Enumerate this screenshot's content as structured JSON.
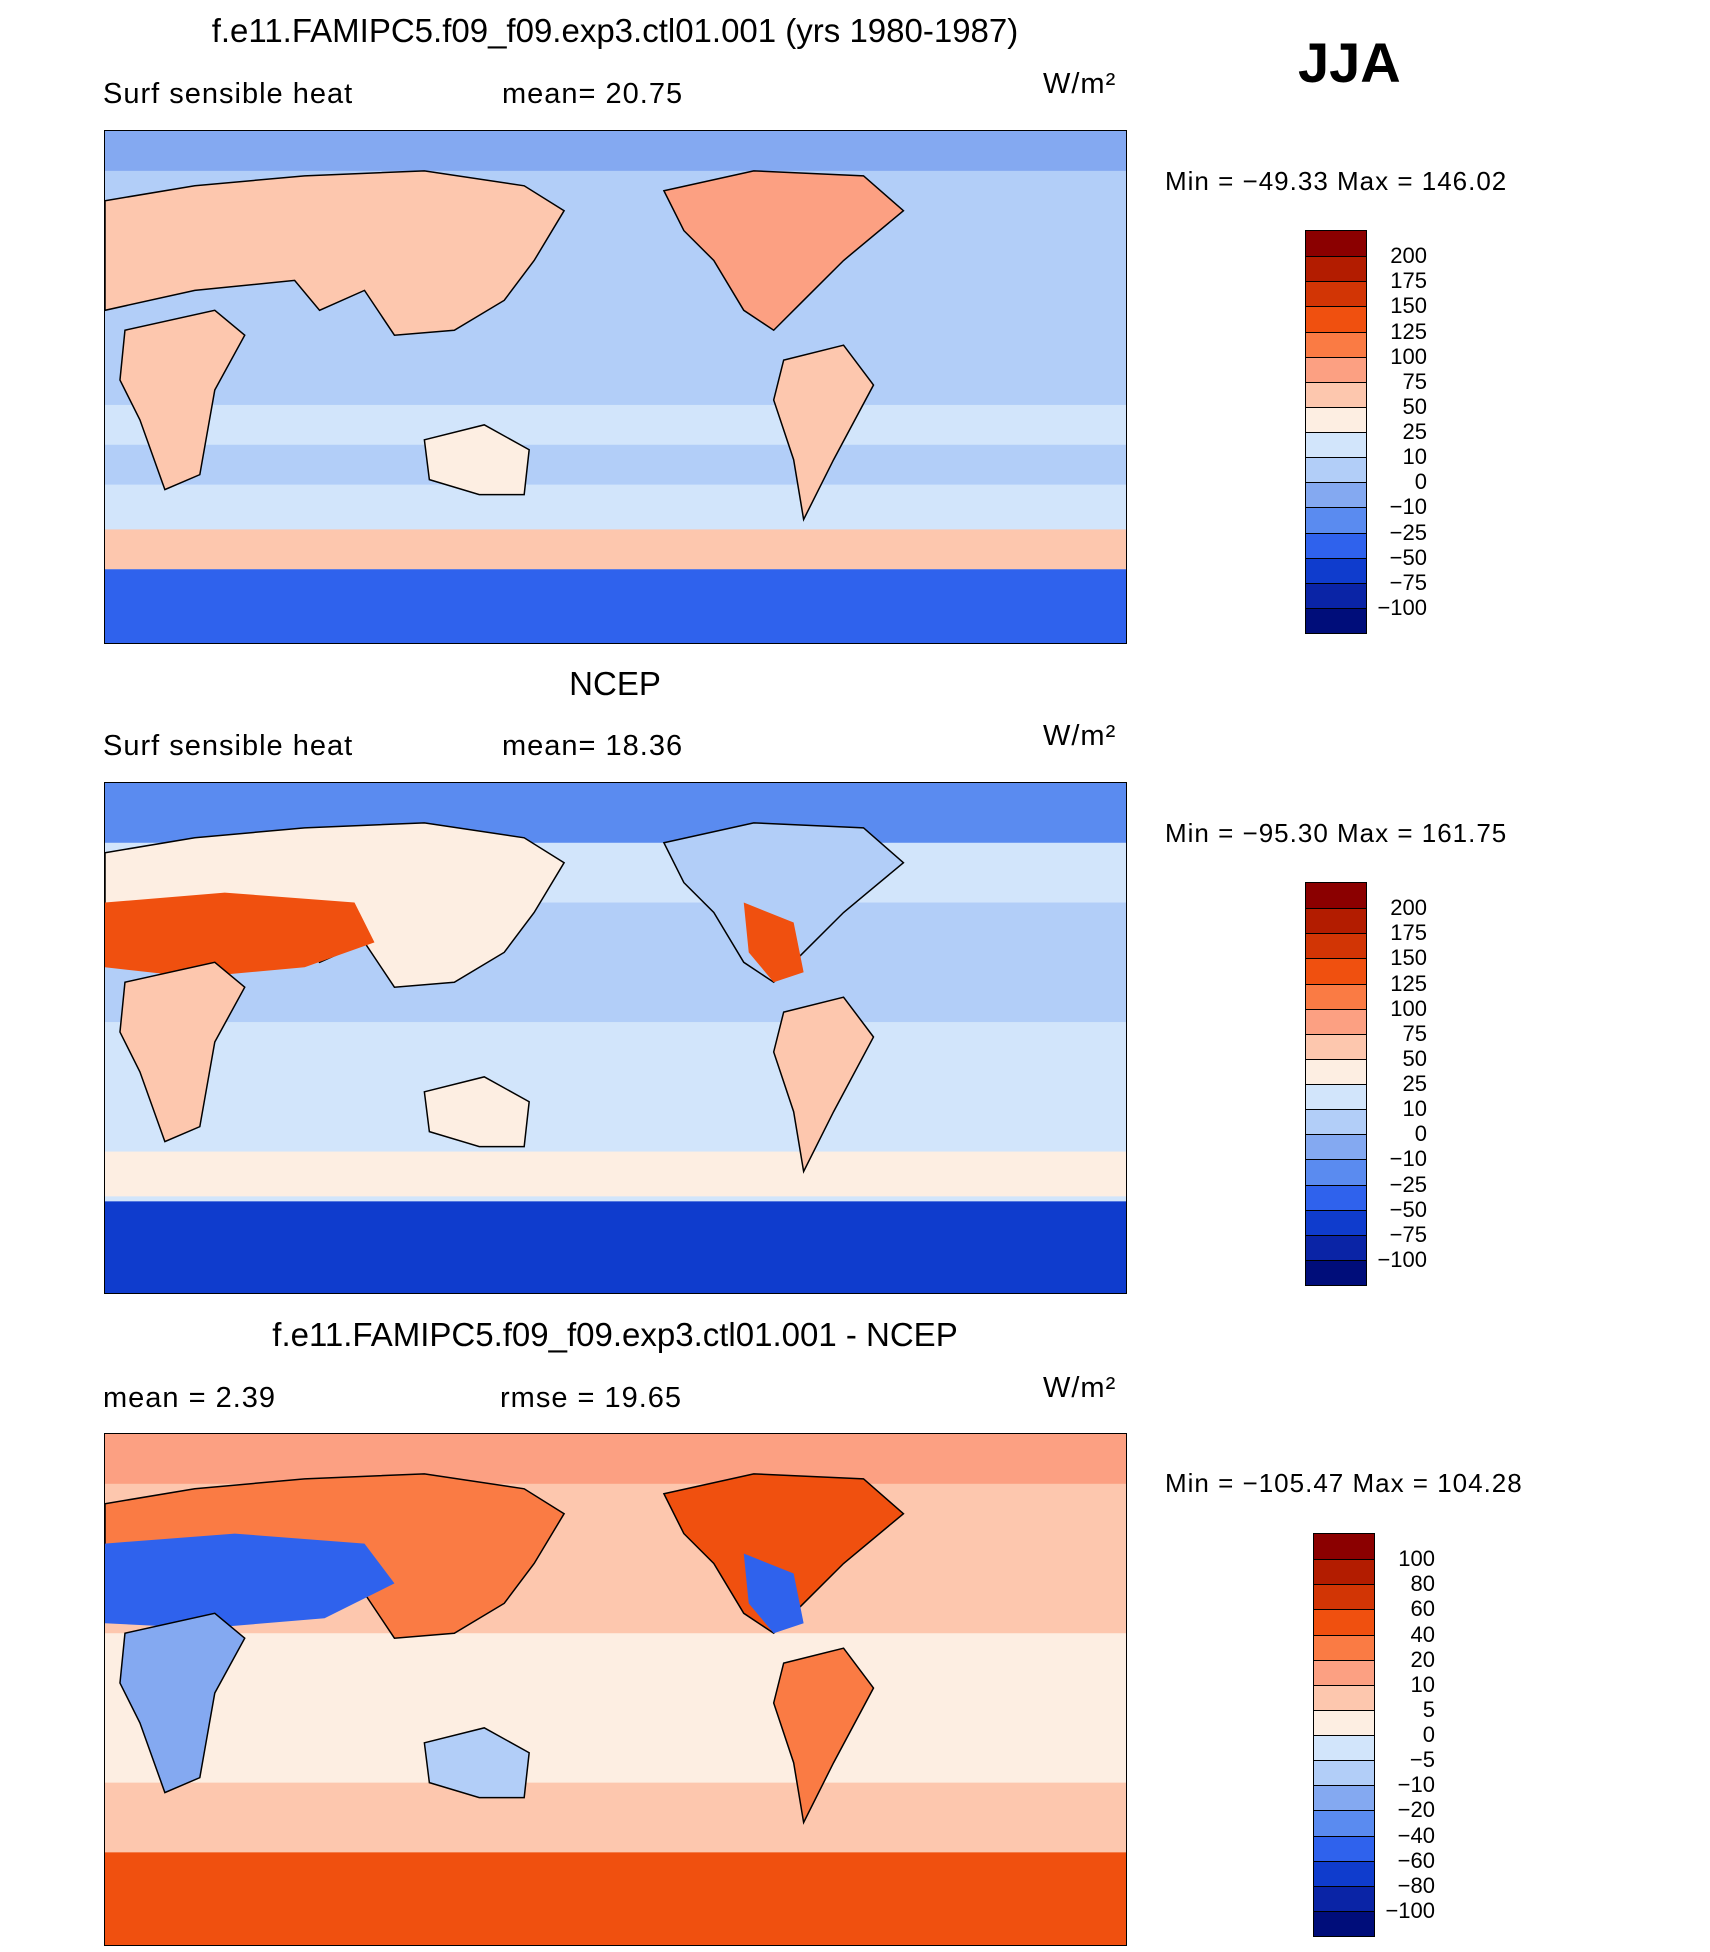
{
  "season": "JJA",
  "panels": [
    {
      "title": "f.e11.FAMIPC5.f09_f09.exp3.ctl01.001 (yrs 1980-1987)",
      "left_label": "Surf  sensible  heat",
      "middle_label": "mean=   20.75",
      "units": "W/m²",
      "minmax": "Min  =  −49.33  Max  =  146.02",
      "colorbar_labels": [
        "200",
        "175",
        "150",
        "125",
        "100",
        "75",
        "50",
        "25",
        "10",
        "0",
        "−10",
        "−25",
        "−50",
        "−75",
        "−100"
      ],
      "colorbar_colors": [
        "#8b0000",
        "#b31c00",
        "#d23505",
        "#f0500f",
        "#fa7b44",
        "#fca082",
        "#fdc7ae",
        "#fdeee2",
        "#d2e5fb",
        "#b2cef8",
        "#84a9f1",
        "#5a8bf0",
        "#2f62ed",
        "#0f3ccd",
        "#0a24a6",
        "#000d7a"
      ]
    },
    {
      "title": "NCEP",
      "left_label": "Surf  sensible  heat",
      "middle_label": "mean=   18.36",
      "units": "W/m²",
      "minmax": "Min  =  −95.30  Max  =  161.75",
      "colorbar_labels": [
        "200",
        "175",
        "150",
        "125",
        "100",
        "75",
        "50",
        "25",
        "10",
        "0",
        "−10",
        "−25",
        "−50",
        "−75",
        "−100"
      ],
      "colorbar_colors": [
        "#8b0000",
        "#b31c00",
        "#d23505",
        "#f0500f",
        "#fa7b44",
        "#fca082",
        "#fdc7ae",
        "#fdeee2",
        "#d2e5fb",
        "#b2cef8",
        "#84a9f1",
        "#5a8bf0",
        "#2f62ed",
        "#0f3ccd",
        "#0a24a6",
        "#000d7a"
      ]
    },
    {
      "title": "f.e11.FAMIPC5.f09_f09.exp3.ctl01.001 - NCEP",
      "left_label": "mean  =      2.39",
      "middle_label": "rmse  =     19.65",
      "units": "W/m²",
      "minmax": "Min  =  −105.47  Max  =  104.28",
      "colorbar_labels": [
        "100",
        "80",
        "60",
        "40",
        "20",
        "10",
        "5",
        "0",
        "−5",
        "−10",
        "−20",
        "−40",
        "−60",
        "−80",
        "−100"
      ],
      "colorbar_colors": [
        "#8b0000",
        "#b31c00",
        "#d23505",
        "#f0500f",
        "#fa7b44",
        "#fca082",
        "#fdc7ae",
        "#fdeee2",
        "#d2e5fb",
        "#b2cef8",
        "#84a9f1",
        "#5a8bf0",
        "#2f62ed",
        "#0f3ccd",
        "#0a24a6",
        "#000d7a"
      ]
    }
  ],
  "chart_data": [
    {
      "type": "heatmap",
      "title": "f.e11.FAMIPC5.f09_f09.exp3.ctl01.001 (yrs 1980-1987)",
      "variable": "Surf  sensible  heat",
      "units": "W/m²",
      "season": "JJA",
      "mean": 20.75,
      "min": -49.33,
      "max": 146.02,
      "contour_levels": [
        -100,
        -75,
        -50,
        -25,
        -10,
        0,
        10,
        25,
        50,
        75,
        100,
        125,
        150,
        175,
        200
      ]
    },
    {
      "type": "heatmap",
      "title": "NCEP",
      "variable": "Surf  sensible  heat",
      "units": "W/m²",
      "season": "JJA",
      "mean": 18.36,
      "min": -95.3,
      "max": 161.75,
      "contour_levels": [
        -100,
        -75,
        -50,
        -25,
        -10,
        0,
        10,
        25,
        50,
        75,
        100,
        125,
        150,
        175,
        200
      ]
    },
    {
      "type": "heatmap",
      "title": "f.e11.FAMIPC5.f09_f09.exp3.ctl01.001 - NCEP",
      "units": "W/m²",
      "season": "JJA",
      "mean": 2.39,
      "rmse": 19.65,
      "min": -105.47,
      "max": 104.28,
      "contour_levels": [
        -100,
        -80,
        -60,
        -40,
        -20,
        -10,
        -5,
        0,
        5,
        10,
        20,
        40,
        60,
        80,
        100
      ]
    }
  ]
}
